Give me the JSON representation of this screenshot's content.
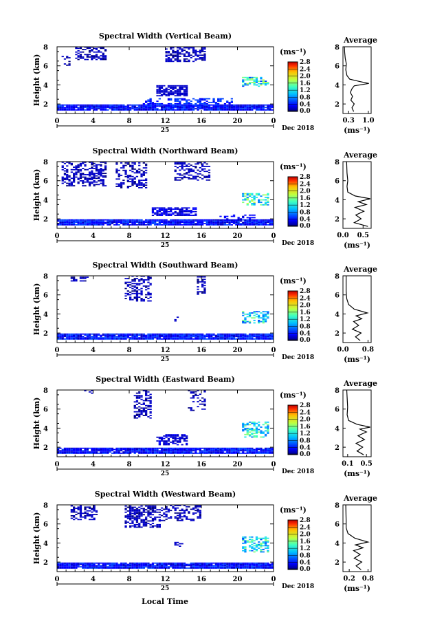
{
  "figure": {
    "x_axis_title": "Local Time",
    "date_label": "Dec 2018",
    "day_label": "25"
  },
  "chart_data": [
    {
      "type": "heatmap",
      "title": "Spectral Width (Vertical Beam)",
      "ylabel": "Height (km)",
      "xlabel": "Local Time",
      "x_ticks": [
        "0",
        "4",
        "8",
        "12",
        "16",
        "20",
        "0"
      ],
      "y_ticks": [
        "2",
        "4",
        "6",
        "8"
      ],
      "xlim": [
        0,
        24
      ],
      "ylim": [
        1,
        8
      ],
      "colorbar": {
        "unit": "(ms⁻¹)",
        "ticks": [
          "0.0",
          "0.4",
          "0.8",
          "1.2",
          "1.6",
          "2.0",
          "2.4",
          "2.8"
        ]
      },
      "average_profile": {
        "title": "Average",
        "xlabel": "(ms⁻¹)",
        "x_ticks": [
          "0.3",
          "1.0"
        ],
        "xlim": [
          0.1,
          1.1
        ],
        "y_ticks": [
          "2",
          "4",
          "6",
          "8"
        ],
        "ylim": [
          1,
          8
        ],
        "points": [
          [
            0.48,
            1.2
          ],
          [
            0.42,
            1.6
          ],
          [
            0.5,
            2.0
          ],
          [
            0.38,
            2.4
          ],
          [
            0.44,
            2.8
          ],
          [
            0.36,
            3.2
          ],
          [
            0.42,
            3.6
          ],
          [
            0.5,
            3.9
          ],
          [
            1.02,
            4.15
          ],
          [
            0.7,
            4.35
          ],
          [
            0.34,
            4.6
          ],
          [
            0.24,
            5.0
          ],
          [
            0.2,
            5.6
          ],
          [
            0.22,
            6.2
          ],
          [
            0.18,
            6.8
          ],
          [
            0.16,
            7.4
          ],
          [
            0.15,
            8.0
          ]
        ]
      }
    },
    {
      "type": "heatmap",
      "title": "Spectral Width (Northward Beam)",
      "ylabel": "Height (km)",
      "xlabel": "Local Time",
      "x_ticks": [
        "0",
        "4",
        "8",
        "12",
        "16",
        "20",
        "0"
      ],
      "y_ticks": [
        "2",
        "4",
        "6",
        "8"
      ],
      "xlim": [
        0,
        24
      ],
      "ylim": [
        1,
        8
      ],
      "colorbar": {
        "unit": "(ms⁻¹)",
        "ticks": [
          "0.0",
          "0.4",
          "0.8",
          "1.2",
          "1.6",
          "2.0",
          "2.4",
          "2.8"
        ]
      },
      "average_profile": {
        "title": "Average",
        "xlabel": "(ms⁻¹)",
        "x_ticks": [
          "0.0",
          "0.5"
        ],
        "xlim": [
          0.0,
          0.7
        ],
        "y_ticks": [
          "2",
          "4",
          "6",
          "8"
        ],
        "ylim": [
          1,
          8
        ],
        "points": [
          [
            0.62,
            1.2
          ],
          [
            0.28,
            1.6
          ],
          [
            0.45,
            2.0
          ],
          [
            0.32,
            2.4
          ],
          [
            0.52,
            2.8
          ],
          [
            0.3,
            3.2
          ],
          [
            0.58,
            3.5
          ],
          [
            0.38,
            3.8
          ],
          [
            0.68,
            4.1
          ],
          [
            0.3,
            4.4
          ],
          [
            0.12,
            4.8
          ],
          [
            0.1,
            5.4
          ],
          [
            0.12,
            6.0
          ],
          [
            0.1,
            6.8
          ],
          [
            0.09,
            8.0
          ]
        ]
      }
    },
    {
      "type": "heatmap",
      "title": "Spectral Width (Southward Beam)",
      "ylabel": "Height (km)",
      "xlabel": "Local Time",
      "x_ticks": [
        "0",
        "4",
        "8",
        "12",
        "16",
        "20",
        "0"
      ],
      "y_ticks": [
        "2",
        "4",
        "6",
        "8"
      ],
      "xlim": [
        0,
        24
      ],
      "ylim": [
        1,
        8
      ],
      "colorbar": {
        "unit": "(ms⁻¹)",
        "ticks": [
          "0.0",
          "0.4",
          "0.8",
          "1.2",
          "1.6",
          "2.0",
          "2.4",
          "2.8"
        ]
      },
      "average_profile": {
        "title": "Average",
        "xlabel": "(ms⁻¹)",
        "x_ticks": [
          "0.0",
          "0.8"
        ],
        "xlim": [
          0.0,
          0.9
        ],
        "y_ticks": [
          "2",
          "4",
          "6",
          "8"
        ],
        "ylim": [
          1,
          8
        ],
        "points": [
          [
            0.55,
            1.2
          ],
          [
            0.4,
            1.6
          ],
          [
            0.58,
            2.0
          ],
          [
            0.3,
            2.4
          ],
          [
            0.5,
            2.8
          ],
          [
            0.34,
            3.2
          ],
          [
            0.6,
            3.5
          ],
          [
            0.42,
            3.8
          ],
          [
            0.78,
            4.1
          ],
          [
            0.36,
            4.5
          ],
          [
            0.18,
            5.0
          ],
          [
            0.12,
            5.6
          ],
          [
            0.1,
            6.4
          ],
          [
            0.1,
            8.0
          ]
        ]
      }
    },
    {
      "type": "heatmap",
      "title": "Spectral Width (Eastward Beam)",
      "ylabel": "Height (km)",
      "xlabel": "Local Time",
      "x_ticks": [
        "0",
        "4",
        "8",
        "12",
        "16",
        "20",
        "0"
      ],
      "y_ticks": [
        "2",
        "4",
        "6",
        "8"
      ],
      "xlim": [
        0,
        24
      ],
      "ylim": [
        1,
        8
      ],
      "colorbar": {
        "unit": "(ms⁻¹)",
        "ticks": [
          "0.0",
          "0.4",
          "0.8",
          "1.2",
          "1.6",
          "2.0",
          "2.4",
          "2.8"
        ]
      },
      "average_profile": {
        "title": "Average",
        "xlabel": "(ms⁻¹)",
        "x_ticks": [
          "0.1",
          "0.5"
        ],
        "xlim": [
          0.0,
          0.6
        ],
        "y_ticks": [
          "2",
          "4",
          "6",
          "8"
        ],
        "ylim": [
          1,
          8
        ],
        "points": [
          [
            0.44,
            1.2
          ],
          [
            0.3,
            1.6
          ],
          [
            0.42,
            2.0
          ],
          [
            0.28,
            2.4
          ],
          [
            0.46,
            2.8
          ],
          [
            0.32,
            3.2
          ],
          [
            0.5,
            3.6
          ],
          [
            0.36,
            3.9
          ],
          [
            0.58,
            4.1
          ],
          [
            0.3,
            4.4
          ],
          [
            0.12,
            4.8
          ],
          [
            0.09,
            5.4
          ],
          [
            0.1,
            6.2
          ],
          [
            0.08,
            8.0
          ]
        ]
      }
    },
    {
      "type": "heatmap",
      "title": "Spectral Width (Westward Beam)",
      "ylabel": "Height (km)",
      "xlabel": "Local Time",
      "x_ticks": [
        "0",
        "4",
        "8",
        "12",
        "16",
        "20",
        "0"
      ],
      "y_ticks": [
        "2",
        "4",
        "6",
        "8"
      ],
      "xlim": [
        0,
        24
      ],
      "ylim": [
        1,
        8
      ],
      "colorbar": {
        "unit": "(ms⁻¹)",
        "ticks": [
          "0.0",
          "0.4",
          "0.8",
          "1.2",
          "1.6",
          "2.0",
          "2.4",
          "2.8"
        ]
      },
      "average_profile": {
        "title": "Average",
        "xlabel": "(ms⁻¹)",
        "x_ticks": [
          "0.2",
          "0.8"
        ],
        "xlim": [
          0.0,
          0.9
        ],
        "y_ticks": [
          "2",
          "4",
          "6",
          "8"
        ],
        "ylim": [
          1,
          8
        ],
        "points": [
          [
            0.58,
            1.2
          ],
          [
            0.42,
            1.6
          ],
          [
            0.6,
            2.0
          ],
          [
            0.36,
            2.4
          ],
          [
            0.55,
            2.8
          ],
          [
            0.34,
            3.2
          ],
          [
            0.64,
            3.5
          ],
          [
            0.4,
            3.8
          ],
          [
            0.8,
            4.1
          ],
          [
            0.38,
            4.5
          ],
          [
            0.16,
            5.0
          ],
          [
            0.1,
            5.6
          ],
          [
            0.1,
            6.4
          ],
          [
            0.09,
            8.0
          ]
        ]
      }
    }
  ]
}
